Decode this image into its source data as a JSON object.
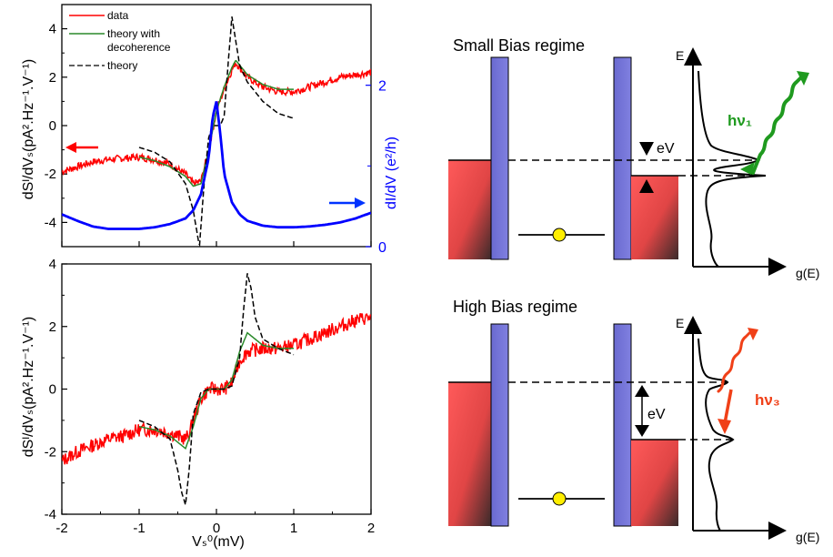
{
  "chart_data": [
    {
      "type": "line",
      "panel": "top-left",
      "xlim": [
        -2,
        2
      ],
      "ylim_left": [
        -5,
        5
      ],
      "ylim_right": [
        0,
        3
      ],
      "xticks": [],
      "yticks_left": [
        "4",
        "2",
        "0",
        "-2",
        "-4"
      ],
      "yticks_right": [
        "2",
        "0"
      ],
      "ylabel_left": "dSᴵ/dVₛ(pA².Hz⁻¹.V⁻¹)",
      "ylabel_right": "dI/dV (e²/h)",
      "legend": [
        "data",
        "theory with decoherence",
        "theory"
      ],
      "legend_position": "top-left",
      "series": [
        {
          "name": "data",
          "color": "#ff0000",
          "x": [
            -2,
            -1.8,
            -1.6,
            -1.4,
            -1.2,
            -1.0,
            -0.8,
            -0.6,
            -0.4,
            -0.3,
            -0.2,
            -0.1,
            0,
            0.1,
            0.2,
            0.25,
            0.3,
            0.4,
            0.6,
            0.8,
            1.0,
            1.2,
            1.4,
            1.6,
            1.8,
            2.0
          ],
          "y": [
            -1.9,
            -1.7,
            -1.5,
            -1.4,
            -1.35,
            -1.3,
            -1.4,
            -1.6,
            -2.0,
            -2.4,
            -2.3,
            -1.0,
            0.6,
            1.5,
            2.3,
            2.6,
            2.4,
            2.0,
            1.6,
            1.4,
            1.4,
            1.6,
            1.8,
            2.0,
            2.1,
            2.2
          ]
        },
        {
          "name": "theory with decoherence",
          "color": "#2a8a2a",
          "x": [
            -1.0,
            -0.8,
            -0.6,
            -0.4,
            -0.3,
            -0.2,
            -0.1,
            0,
            0.1,
            0.2,
            0.25,
            0.3,
            0.4,
            0.6,
            0.8,
            1.0
          ],
          "y": [
            -1.3,
            -1.45,
            -1.7,
            -2.1,
            -2.5,
            -2.4,
            -1.0,
            0.6,
            1.6,
            2.4,
            2.7,
            2.5,
            2.1,
            1.7,
            1.5,
            1.5
          ]
        },
        {
          "name": "theory",
          "color": "#000000",
          "dashed": true,
          "x": [
            -1.0,
            -0.8,
            -0.6,
            -0.4,
            -0.3,
            -0.22,
            -0.15,
            -0.1,
            -0.05,
            0,
            0.05,
            0.1,
            0.15,
            0.2,
            0.25,
            0.3,
            0.4,
            0.6,
            0.8,
            1.0
          ],
          "y": [
            -0.9,
            -1.1,
            -1.5,
            -2.4,
            -3.5,
            -5.0,
            -2.0,
            -0.5,
            0.0,
            0.0,
            0.0,
            0.4,
            2.5,
            4.5,
            3.5,
            2.5,
            1.8,
            1.0,
            0.5,
            0.3
          ]
        },
        {
          "name": "dI/dV",
          "color": "#0000ff",
          "axis": "right",
          "x": [
            -2,
            -1.8,
            -1.6,
            -1.4,
            -1.2,
            -1.0,
            -0.8,
            -0.6,
            -0.4,
            -0.3,
            -0.2,
            -0.1,
            -0.05,
            0,
            0.05,
            0.1,
            0.2,
            0.3,
            0.4,
            0.6,
            0.8,
            1.0,
            1.2,
            1.4,
            1.6,
            1.8,
            2.0
          ],
          "y": [
            0.4,
            0.32,
            0.25,
            0.22,
            0.22,
            0.22,
            0.24,
            0.28,
            0.35,
            0.45,
            0.65,
            1.1,
            1.6,
            1.8,
            1.4,
            0.9,
            0.55,
            0.4,
            0.32,
            0.26,
            0.24,
            0.24,
            0.25,
            0.27,
            0.3,
            0.35,
            0.42
          ]
        }
      ]
    },
    {
      "type": "line",
      "panel": "bottom-left",
      "xlim": [
        -2,
        2
      ],
      "ylim": [
        -4,
        4
      ],
      "xticks": [
        "-2",
        "-1",
        "0",
        "1",
        "2"
      ],
      "yticks": [
        "4",
        "2",
        "0",
        "-2",
        "-4"
      ],
      "ylabel": "dSᴵ/dVₛ(pA².Hz⁻¹.V⁻¹)",
      "xlabel": "Vₛ⁰(mV)",
      "series": [
        {
          "name": "data",
          "color": "#ff0000",
          "x": [
            -2,
            -1.8,
            -1.6,
            -1.4,
            -1.2,
            -1.0,
            -0.8,
            -0.6,
            -0.4,
            -0.35,
            -0.3,
            -0.2,
            -0.1,
            0,
            0.1,
            0.2,
            0.3,
            0.4,
            0.6,
            0.8,
            1.0,
            1.2,
            1.4,
            1.6,
            1.8,
            2.0
          ],
          "y": [
            -2.3,
            -2.0,
            -1.8,
            -1.6,
            -1.5,
            -1.3,
            -1.3,
            -1.4,
            -1.6,
            -1.4,
            -1.0,
            -0.3,
            0.0,
            0.0,
            0.0,
            0.2,
            0.9,
            1.2,
            1.3,
            1.3,
            1.4,
            1.6,
            1.8,
            2.0,
            2.2,
            2.3
          ]
        },
        {
          "name": "theory with decoherence",
          "color": "#2a8a2a",
          "x": [
            -1.0,
            -0.8,
            -0.6,
            -0.5,
            -0.4,
            -0.3,
            -0.2,
            -0.1,
            0,
            0.1,
            0.2,
            0.3,
            0.4,
            0.5,
            0.6,
            0.8,
            1.0
          ],
          "y": [
            -1.2,
            -1.3,
            -1.5,
            -1.7,
            -1.9,
            -1.2,
            -0.3,
            0.0,
            0.0,
            0.0,
            0.3,
            1.2,
            1.8,
            1.6,
            1.4,
            1.3,
            1.3
          ]
        },
        {
          "name": "theory",
          "color": "#000000",
          "dashed": true,
          "x": [
            -1.0,
            -0.8,
            -0.6,
            -0.5,
            -0.45,
            -0.4,
            -0.35,
            -0.3,
            -0.2,
            -0.1,
            0,
            0.1,
            0.2,
            0.3,
            0.35,
            0.4,
            0.45,
            0.5,
            0.6,
            0.8,
            1.0
          ],
          "y": [
            -1.0,
            -1.2,
            -1.6,
            -2.6,
            -3.3,
            -3.7,
            -2.5,
            -0.8,
            -0.1,
            0.0,
            0.0,
            0.0,
            0.1,
            1.0,
            2.5,
            3.7,
            3.2,
            2.3,
            1.6,
            1.3,
            1.1
          ]
        }
      ]
    }
  ],
  "diagram_top": {
    "title": "Small Bias regime",
    "energy_label": "E",
    "dos_label": "g(E)",
    "bias_label": "eV",
    "photon_label": "hν₁",
    "photon_color": "#1f9a1f"
  },
  "diagram_bottom": {
    "title": "High Bias regime",
    "energy_label": "E",
    "dos_label": "g(E)",
    "bias_label": "eV",
    "photon_label": "hν₃",
    "photon_color": "#f04018"
  }
}
